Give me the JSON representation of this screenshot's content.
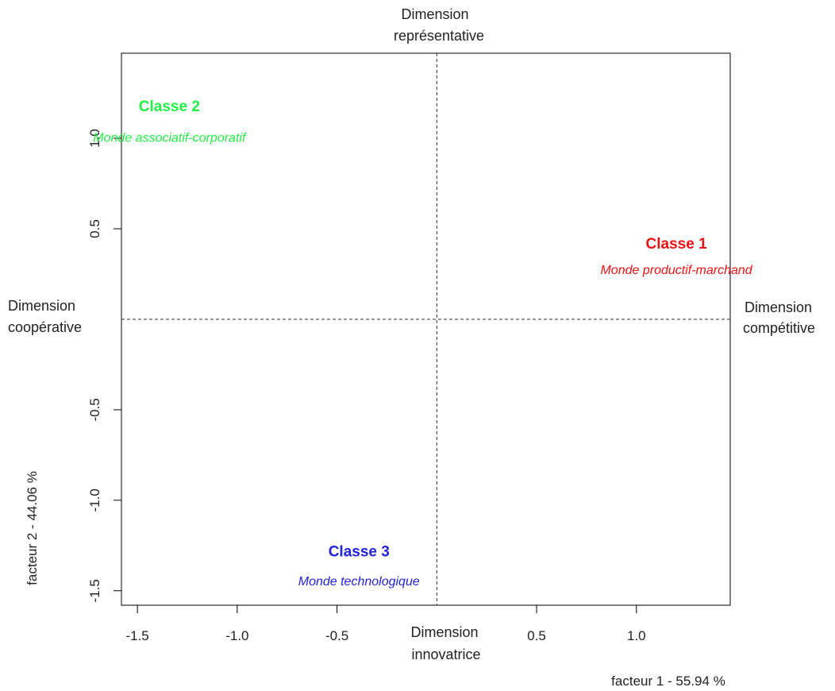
{
  "chart_data": {
    "type": "scatter",
    "x_axis": {
      "label": "facteur  1  - 55.94 %",
      "ticks": [
        -1.5,
        -1.0,
        -0.5,
        0.5,
        1.0
      ],
      "tick_labels": [
        "-1.5",
        "-1.0",
        "-0.5",
        "0.5",
        "1.0"
      ],
      "range": [
        -1.58,
        1.47
      ]
    },
    "y_axis": {
      "label": "facteur  2  - 44.06 %",
      "ticks": [
        -1.5,
        -1.0,
        -0.5,
        0.5,
        1.0
      ],
      "tick_labels": [
        "-1.5",
        "-1.0",
        "-0.5",
        "0.5",
        "1.0"
      ],
      "range": [
        -1.58,
        1.47
      ]
    },
    "reference_lines": {
      "x": 0,
      "y": 0,
      "style": "dashed"
    },
    "dimensions": {
      "top": [
        "Dimension",
        "représentative"
      ],
      "bottom": [
        "Dimension",
        "innovatrice"
      ],
      "left": [
        "Dimension",
        "coopérative"
      ],
      "right": [
        "Dimension",
        "compétitive"
      ]
    },
    "points": [
      {
        "name": "Classe 1",
        "subtitle": "Monde productif-marchand",
        "x": 1.2,
        "y": 0.39,
        "sub_y": 0.25,
        "color": "#ee1111"
      },
      {
        "name": "Classe 2",
        "subtitle": "Monde associatif-corporatif",
        "x": -1.34,
        "y": 1.15,
        "sub_y": 0.98,
        "color": "#22ee44"
      },
      {
        "name": "Classe 3",
        "subtitle": "Monde technologique",
        "x": -0.39,
        "y": -1.31,
        "sub_y": -1.47,
        "color": "#2222dd"
      }
    ]
  }
}
